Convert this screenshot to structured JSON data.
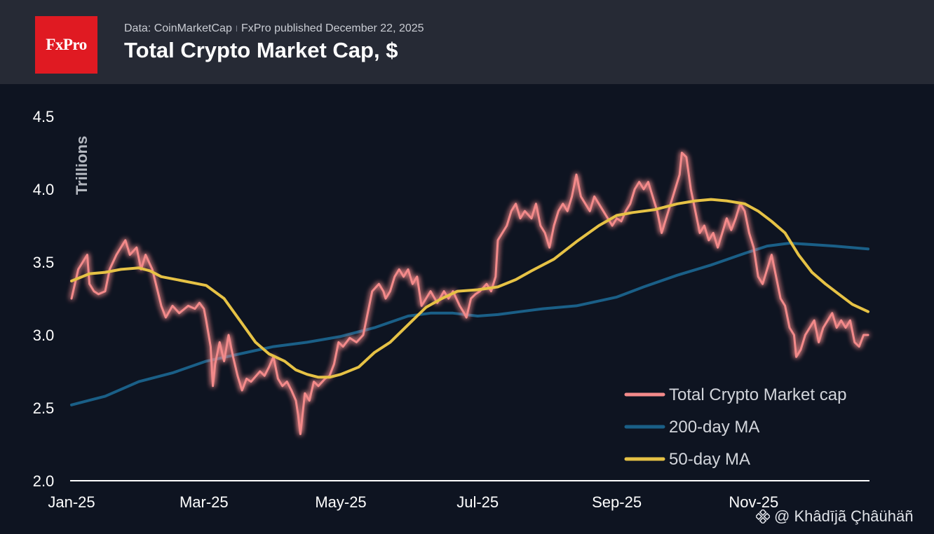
{
  "header": {
    "logo": "FxPro",
    "source": "Data: CoinMarketCap",
    "separator": "ǀ",
    "published": "FxPro published December 22, 2025",
    "title": "Total Crypto Market Cap, $"
  },
  "watermark": "@ Khâdījã Çhâühäñ",
  "chart_data": {
    "type": "line",
    "title": "Total Crypto Market Cap, $",
    "ylabel": "Trillions",
    "xlabel": "",
    "ylim": [
      2.0,
      4.5
    ],
    "yticks": [
      "4.5",
      "4.0",
      "3.5",
      "3.0",
      "2.5",
      "2.0"
    ],
    "xticks": [
      {
        "label": "Jan-25",
        "t": 0
      },
      {
        "label": "Mar-25",
        "t": 59
      },
      {
        "label": "May-25",
        "t": 120
      },
      {
        "label": "Jul-25",
        "t": 181
      },
      {
        "label": "Sep-25",
        "t": 243
      },
      {
        "label": "Nov-25",
        "t": 304
      }
    ],
    "x_unit": "days since Jan 1, 2025",
    "xlim": [
      0,
      355
    ],
    "series": [
      {
        "name": "Total Crypto Market cap",
        "color": "#f38a8a",
        "points": [
          [
            0,
            3.25
          ],
          [
            3,
            3.45
          ],
          [
            5,
            3.5
          ],
          [
            7,
            3.55
          ],
          [
            8,
            3.35
          ],
          [
            10,
            3.3
          ],
          [
            12,
            3.28
          ],
          [
            15,
            3.3
          ],
          [
            17,
            3.45
          ],
          [
            20,
            3.55
          ],
          [
            24,
            3.65
          ],
          [
            26,
            3.55
          ],
          [
            29,
            3.6
          ],
          [
            31,
            3.45
          ],
          [
            33,
            3.55
          ],
          [
            36,
            3.45
          ],
          [
            40,
            3.2
          ],
          [
            42,
            3.12
          ],
          [
            45,
            3.2
          ],
          [
            48,
            3.15
          ],
          [
            52,
            3.2
          ],
          [
            55,
            3.18
          ],
          [
            57,
            3.22
          ],
          [
            59,
            3.18
          ],
          [
            60,
            3.1
          ],
          [
            62,
            2.92
          ],
          [
            63,
            2.65
          ],
          [
            64,
            2.8
          ],
          [
            66,
            2.95
          ],
          [
            68,
            2.82
          ],
          [
            70,
            3.0
          ],
          [
            72,
            2.85
          ],
          [
            74,
            2.72
          ],
          [
            76,
            2.62
          ],
          [
            78,
            2.7
          ],
          [
            80,
            2.68
          ],
          [
            84,
            2.75
          ],
          [
            86,
            2.72
          ],
          [
            88,
            2.78
          ],
          [
            90,
            2.85
          ],
          [
            92,
            2.7
          ],
          [
            94,
            2.65
          ],
          [
            96,
            2.68
          ],
          [
            98,
            2.62
          ],
          [
            100,
            2.55
          ],
          [
            101,
            2.45
          ],
          [
            102,
            2.32
          ],
          [
            104,
            2.6
          ],
          [
            106,
            2.55
          ],
          [
            108,
            2.68
          ],
          [
            110,
            2.65
          ],
          [
            113,
            2.7
          ],
          [
            115,
            2.72
          ],
          [
            117,
            2.8
          ],
          [
            119,
            2.95
          ],
          [
            121,
            2.92
          ],
          [
            124,
            2.98
          ],
          [
            127,
            2.95
          ],
          [
            130,
            3.0
          ],
          [
            132,
            3.15
          ],
          [
            134,
            3.3
          ],
          [
            137,
            3.35
          ],
          [
            139,
            3.3
          ],
          [
            140,
            3.25
          ],
          [
            142,
            3.3
          ],
          [
            144,
            3.4
          ],
          [
            146,
            3.45
          ],
          [
            148,
            3.4
          ],
          [
            150,
            3.45
          ],
          [
            152,
            3.35
          ],
          [
            154,
            3.4
          ],
          [
            156,
            3.2
          ],
          [
            158,
            3.25
          ],
          [
            160,
            3.3
          ],
          [
            163,
            3.22
          ],
          [
            166,
            3.3
          ],
          [
            168,
            3.25
          ],
          [
            170,
            3.3
          ],
          [
            173,
            3.2
          ],
          [
            175,
            3.15
          ],
          [
            176,
            3.12
          ],
          [
            178,
            3.25
          ],
          [
            180,
            3.28
          ],
          [
            182,
            3.3
          ],
          [
            185,
            3.35
          ],
          [
            187,
            3.3
          ],
          [
            189,
            3.4
          ],
          [
            190,
            3.65
          ],
          [
            192,
            3.7
          ],
          [
            194,
            3.75
          ],
          [
            196,
            3.85
          ],
          [
            198,
            3.9
          ],
          [
            200,
            3.8
          ],
          [
            202,
            3.85
          ],
          [
            205,
            3.8
          ],
          [
            207,
            3.9
          ],
          [
            209,
            3.75
          ],
          [
            211,
            3.7
          ],
          [
            213,
            3.6
          ],
          [
            215,
            3.75
          ],
          [
            217,
            3.85
          ],
          [
            219,
            3.9
          ],
          [
            221,
            3.85
          ],
          [
            223,
            3.95
          ],
          [
            225,
            4.1
          ],
          [
            227,
            3.95
          ],
          [
            229,
            3.9
          ],
          [
            231,
            3.85
          ],
          [
            233,
            3.95
          ],
          [
            235,
            3.9
          ],
          [
            237,
            3.85
          ],
          [
            239,
            3.8
          ],
          [
            241,
            3.75
          ],
          [
            243,
            3.8
          ],
          [
            245,
            3.78
          ],
          [
            247,
            3.85
          ],
          [
            249,
            3.9
          ],
          [
            251,
            4.0
          ],
          [
            253,
            4.05
          ],
          [
            255,
            4.0
          ],
          [
            257,
            4.05
          ],
          [
            259,
            3.95
          ],
          [
            261,
            3.85
          ],
          [
            263,
            3.7
          ],
          [
            265,
            3.8
          ],
          [
            267,
            3.9
          ],
          [
            269,
            4.0
          ],
          [
            271,
            4.1
          ],
          [
            272,
            4.25
          ],
          [
            274,
            4.22
          ],
          [
            276,
            4.0
          ],
          [
            278,
            3.85
          ],
          [
            280,
            3.7
          ],
          [
            282,
            3.75
          ],
          [
            284,
            3.65
          ],
          [
            286,
            3.7
          ],
          [
            288,
            3.6
          ],
          [
            290,
            3.7
          ],
          [
            292,
            3.8
          ],
          [
            294,
            3.72
          ],
          [
            296,
            3.8
          ],
          [
            298,
            3.9
          ],
          [
            300,
            3.85
          ],
          [
            302,
            3.7
          ],
          [
            304,
            3.6
          ],
          [
            306,
            3.4
          ],
          [
            308,
            3.35
          ],
          [
            310,
            3.45
          ],
          [
            312,
            3.55
          ],
          [
            314,
            3.4
          ],
          [
            316,
            3.25
          ],
          [
            318,
            3.2
          ],
          [
            320,
            3.05
          ],
          [
            322,
            3.0
          ],
          [
            323,
            2.85
          ],
          [
            325,
            2.9
          ],
          [
            327,
            3.0
          ],
          [
            329,
            3.05
          ],
          [
            331,
            3.1
          ],
          [
            333,
            2.95
          ],
          [
            335,
            3.05
          ],
          [
            337,
            3.1
          ],
          [
            339,
            3.15
          ],
          [
            341,
            3.05
          ],
          [
            343,
            3.1
          ],
          [
            345,
            3.05
          ],
          [
            347,
            3.1
          ],
          [
            349,
            2.95
          ],
          [
            351,
            2.92
          ],
          [
            353,
            3.0
          ],
          [
            355,
            3.0
          ]
        ]
      },
      {
        "name": "200-day MA",
        "color": "#1a5f87",
        "points": [
          [
            0,
            2.52
          ],
          [
            15,
            2.58
          ],
          [
            30,
            2.68
          ],
          [
            45,
            2.74
          ],
          [
            60,
            2.82
          ],
          [
            75,
            2.87
          ],
          [
            90,
            2.92
          ],
          [
            105,
            2.95
          ],
          [
            120,
            2.99
          ],
          [
            135,
            3.05
          ],
          [
            150,
            3.13
          ],
          [
            160,
            3.15
          ],
          [
            170,
            3.15
          ],
          [
            181,
            3.13
          ],
          [
            190,
            3.14
          ],
          [
            200,
            3.16
          ],
          [
            210,
            3.18
          ],
          [
            225,
            3.2
          ],
          [
            243,
            3.26
          ],
          [
            255,
            3.33
          ],
          [
            270,
            3.41
          ],
          [
            285,
            3.48
          ],
          [
            300,
            3.56
          ],
          [
            310,
            3.61
          ],
          [
            320,
            3.63
          ],
          [
            330,
            3.62
          ],
          [
            340,
            3.61
          ],
          [
            355,
            3.59
          ]
        ]
      },
      {
        "name": "50-day MA",
        "color": "#e6c245",
        "points": [
          [
            0,
            3.37
          ],
          [
            8,
            3.42
          ],
          [
            15,
            3.43
          ],
          [
            22,
            3.45
          ],
          [
            30,
            3.46
          ],
          [
            35,
            3.44
          ],
          [
            40,
            3.4
          ],
          [
            50,
            3.37
          ],
          [
            60,
            3.34
          ],
          [
            68,
            3.25
          ],
          [
            75,
            3.1
          ],
          [
            82,
            2.95
          ],
          [
            88,
            2.87
          ],
          [
            95,
            2.82
          ],
          [
            100,
            2.76
          ],
          [
            105,
            2.73
          ],
          [
            110,
            2.71
          ],
          [
            115,
            2.71
          ],
          [
            120,
            2.73
          ],
          [
            128,
            2.78
          ],
          [
            135,
            2.88
          ],
          [
            142,
            2.95
          ],
          [
            150,
            3.07
          ],
          [
            158,
            3.19
          ],
          [
            165,
            3.25
          ],
          [
            172,
            3.3
          ],
          [
            181,
            3.31
          ],
          [
            190,
            3.33
          ],
          [
            198,
            3.38
          ],
          [
            205,
            3.44
          ],
          [
            215,
            3.52
          ],
          [
            225,
            3.64
          ],
          [
            235,
            3.75
          ],
          [
            243,
            3.82
          ],
          [
            250,
            3.84
          ],
          [
            260,
            3.86
          ],
          [
            270,
            3.9
          ],
          [
            278,
            3.92
          ],
          [
            285,
            3.93
          ],
          [
            292,
            3.92
          ],
          [
            300,
            3.9
          ],
          [
            306,
            3.85
          ],
          [
            312,
            3.78
          ],
          [
            318,
            3.7
          ],
          [
            324,
            3.55
          ],
          [
            330,
            3.43
          ],
          [
            336,
            3.35
          ],
          [
            342,
            3.28
          ],
          [
            348,
            3.21
          ],
          [
            355,
            3.16
          ]
        ]
      }
    ],
    "legend_position": "bottom-right"
  }
}
